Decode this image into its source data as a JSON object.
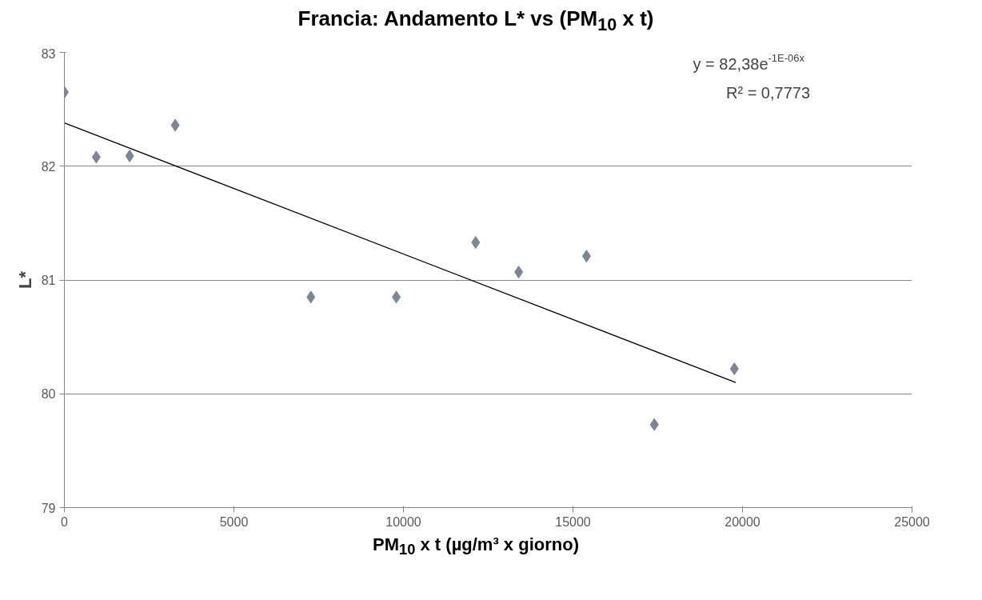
{
  "chart_data": {
    "type": "scatter",
    "title": "Francia: Andamento L* vs (PM$_{10}$ x t)",
    "xlabel": "PM$_{10}$ x t (µg/m³ x giorno)",
    "ylabel": "L*",
    "series": [
      {
        "color": "#7b8796",
        "marker": "diamond",
        "x": [
          0,
          940,
          1925,
          3270,
          7270,
          9790,
          12130,
          13400,
          15400,
          17400,
          19760
        ],
        "values": [
          82.65,
          82.08,
          82.09,
          82.36,
          80.85,
          80.85,
          81.33,
          81.07,
          81.21,
          79.73,
          80.22
        ]
      },
      {
        "type": "line",
        "color": "#000000",
        "x": [
          0,
          19800
        ],
        "values": [
          82.38,
          80.1
        ]
      }
    ],
    "annotations": [
      "y = 82,38e$^{-1E-06x}$",
      "R² = 0,7773"
    ],
    "xlim": [
      0,
      25000
    ],
    "xticks": [
      0,
      5000,
      10000,
      15000,
      20000,
      25000
    ],
    "ylim": [
      79,
      83
    ],
    "yticks": [
      79,
      80,
      81,
      82,
      83
    ],
    "grid": "y",
    "line_style": "solid"
  }
}
